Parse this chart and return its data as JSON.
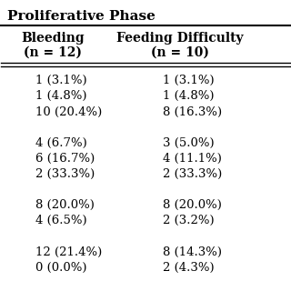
{
  "title": "Proliferative Phase",
  "col1_header": "Bleeding\n(n = 12)",
  "col2_header": "Feeding Difficulty\n(n = 10)",
  "col1_data": [
    "1 (3.1%)",
    "1 (4.8%)",
    "10 (20.4%)",
    "",
    "4 (6.7%)",
    "6 (16.7%)",
    "2 (33.3%)",
    "",
    "8 (20.0%)",
    "4 (6.5%)",
    "",
    "12 (21.4%)",
    "0 (0.0%)"
  ],
  "col2_data": [
    "1 (3.1%)",
    "1 (4.8%)",
    "8 (16.3%)",
    "",
    "3 (5.0%)",
    "4 (11.1%)",
    "2 (33.3%)",
    "",
    "8 (20.0%)",
    "2 (3.2%)",
    "",
    "8 (14.3%)",
    "2 (4.3%)"
  ],
  "bg_color": "#ffffff",
  "text_color": "#000000",
  "title_fontsize": 11,
  "header_fontsize": 10,
  "data_fontsize": 9.5
}
